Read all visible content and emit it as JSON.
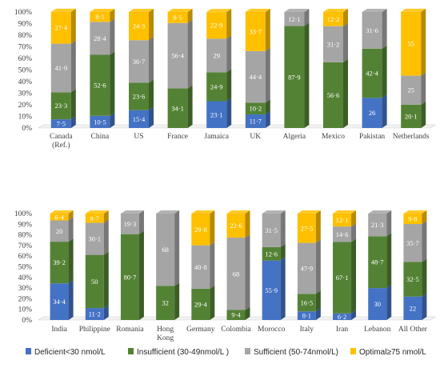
{
  "chart_data": [
    {
      "type": "bar",
      "stacked": true,
      "categories": [
        "Canada (Ref.)",
        "China",
        "US",
        "France",
        "Jamaica",
        "UK",
        "Algeria",
        "Mexico",
        "Pakistan",
        "Netherlands"
      ],
      "category_lines": [
        [
          "Canada",
          "(Ref.)"
        ],
        [
          "China"
        ],
        [
          "US"
        ],
        [
          "France"
        ],
        [
          "Jamaica"
        ],
        [
          "UK"
        ],
        [
          "Algeria"
        ],
        [
          "Mexico"
        ],
        [
          "Pakistan"
        ],
        [
          "Netherlands"
        ]
      ],
      "series": [
        {
          "name": "Deficient<30 nmol/L",
          "color": "#4472C4",
          "values": [
            7.5,
            10.5,
            15.4,
            0,
            23.1,
            11.7,
            0,
            0,
            26,
            0
          ],
          "labels": [
            "7·5",
            "10·5",
            "15·4",
            "",
            "23·1",
            "11·7",
            "",
            "",
            "26",
            ""
          ]
        },
        {
          "name": "Insufficient (30-49nmol/L )",
          "color": "#548235",
          "values": [
            23.3,
            52.6,
            23.6,
            34.1,
            24.9,
            10.2,
            87.9,
            56.6,
            42.4,
            20.1
          ],
          "labels": [
            "23·3",
            "52·6",
            "23·6",
            "34·1",
            "24·9",
            "10·2",
            "87·9",
            "56·6",
            "42·4",
            "20·1"
          ]
        },
        {
          "name": "Sufficient (50-74nmol/L)",
          "color": "#A5A5A5",
          "values": [
            41.9,
            28.4,
            36.7,
            56.4,
            29,
            44.4,
            12.1,
            31.2,
            31.6,
            25
          ],
          "labels": [
            "41·9",
            "28·4",
            "36·7",
            "56·4",
            "29",
            "44·4",
            "12·1",
            "31·2",
            "31·6",
            "25"
          ]
        },
        {
          "name": "Optimal≥75 nmol/L",
          "color": "#FFC000",
          "values": [
            27.4,
            8.5,
            24.3,
            9.5,
            22.9,
            33.7,
            0,
            12.2,
            0,
            55
          ],
          "labels": [
            "27·4",
            "8·5",
            "24·3",
            "9·5",
            "22·9",
            "33·7",
            "",
            "12·2",
            "",
            "55"
          ]
        }
      ],
      "y_ticks": [
        "0%",
        "10%",
        "20%",
        "30%",
        "40%",
        "50%",
        "60%",
        "70%",
        "80%",
        "90%",
        "100%"
      ],
      "ylim": [
        0,
        100
      ],
      "grid": false
    },
    {
      "type": "bar",
      "stacked": true,
      "categories": [
        "India",
        "Philippine",
        "Romania",
        "Hong Kong",
        "Germany",
        "Colombia",
        "Morocco",
        "Italy",
        "Iran",
        "Lebanon",
        "All Other"
      ],
      "category_lines": [
        [
          "India"
        ],
        [
          "Philippine"
        ],
        [
          "Romania"
        ],
        [
          "Hong",
          "Kong"
        ],
        [
          "Germany"
        ],
        [
          "Colombia"
        ],
        [
          "Morocco"
        ],
        [
          "Italy"
        ],
        [
          "Iran"
        ],
        [
          "Lebanon"
        ],
        [
          "All Other"
        ]
      ],
      "series": [
        {
          "name": "Deficient<30 nmol/L",
          "color": "#4472C4",
          "values": [
            34.4,
            11.2,
            0,
            0,
            0,
            0,
            55.9,
            8.1,
            6.2,
            30,
            22
          ],
          "labels": [
            "34·4",
            "11·2",
            "",
            "",
            "",
            "",
            "55·9",
            "8·1",
            "6·2",
            "30",
            "22"
          ]
        },
        {
          "name": "Insufficient (30-49nmol/L )",
          "color": "#548235",
          "values": [
            39.2,
            50,
            80.7,
            32,
            29.4,
            9.4,
            12.6,
            16.5,
            67.1,
            48.7,
            32.5
          ],
          "labels": [
            "39·2",
            "50",
            "80·7",
            "32",
            "29·4",
            "9·4",
            "12·6",
            "16·5",
            "67·1",
            "48·7",
            "32·5"
          ]
        },
        {
          "name": "Sufficient (50-74nmol/L)",
          "color": "#A5A5A5",
          "values": [
            20,
            30.1,
            19.3,
            68,
            40.8,
            68,
            31.5,
            47.9,
            14.6,
            21.3,
            35.7
          ],
          "labels": [
            "20",
            "30·1",
            "19·3",
            "68",
            "40·8",
            "68",
            "31·5",
            "47·9",
            "14·6",
            "21·3",
            "35·7"
          ]
        },
        {
          "name": "Optimal≥75 nmol/L",
          "color": "#FFC000",
          "values": [
            6.4,
            8.7,
            0,
            0,
            29.8,
            22.6,
            0,
            27.5,
            12.1,
            0,
            9.8
          ],
          "labels": [
            "6·4",
            "8·7",
            "",
            "",
            "29·8",
            "22·6",
            "",
            "27·5",
            "12·1",
            "",
            "9·8"
          ]
        }
      ],
      "y_ticks": [
        "0%",
        "10%",
        "20%",
        "30%",
        "40%",
        "50%",
        "60%",
        "70%",
        "80%",
        "90%",
        "100%"
      ],
      "ylim": [
        0,
        100
      ],
      "grid": false
    }
  ],
  "legend": [
    {
      "label": "Deficient<30 nmol/L",
      "color": "#4472C4"
    },
    {
      "label": "Insufficient (30-49nmol/L )",
      "color": "#548235"
    },
    {
      "label": "Sufficient (50-74nmol/L)",
      "color": "#A5A5A5"
    },
    {
      "label": "Optimal≥75 nmol/L",
      "color": "#FFC000"
    }
  ]
}
